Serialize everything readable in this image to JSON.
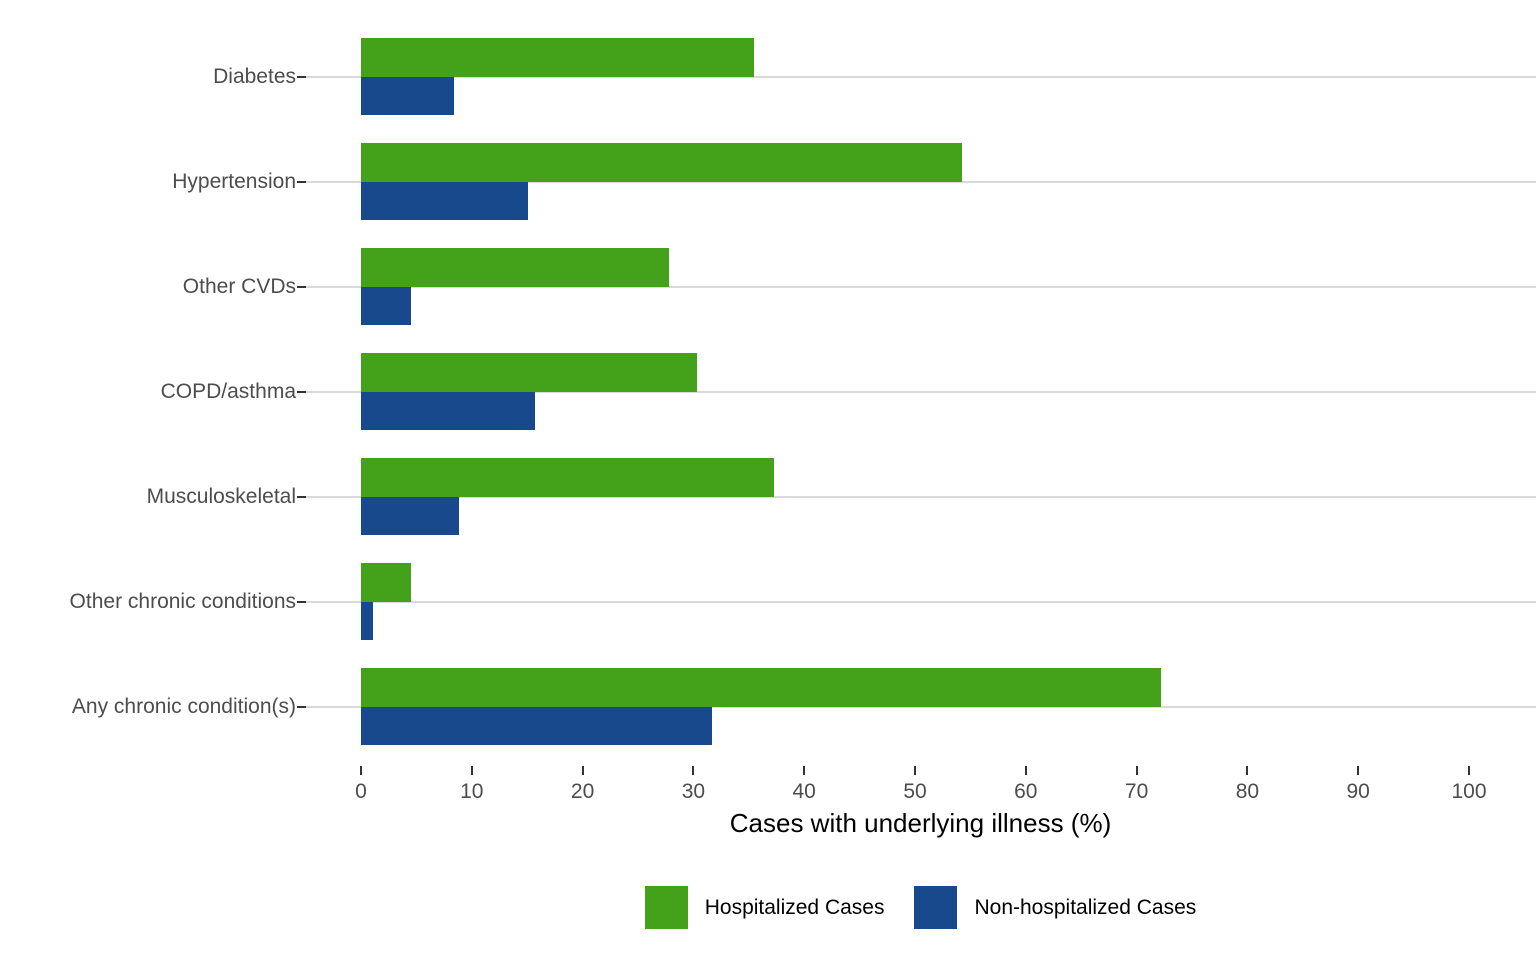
{
  "chart_data": {
    "type": "bar",
    "orientation": "horizontal",
    "title": "",
    "xlabel": "Cases with underlying illness (%)",
    "ylabel": "",
    "categories": [
      "Diabetes",
      "Hypertension",
      "Other CVDs",
      "COPD/asthma",
      "Musculoskeletal",
      "Other chronic conditions",
      "Any chronic condition(s)"
    ],
    "series": [
      {
        "name": "Hospitalized Cases",
        "color": "#44a21a",
        "values": [
          35.5,
          54.2,
          27.8,
          30.3,
          37.3,
          4.5,
          72.2
        ]
      },
      {
        "name": "Non-hospitalized Cases",
        "color": "#17498c",
        "values": [
          8.4,
          15.1,
          4.5,
          15.7,
          8.8,
          1.1,
          31.7
        ]
      }
    ],
    "x_ticks": [
      0,
      10,
      20,
      30,
      40,
      50,
      60,
      70,
      80,
      90,
      100
    ],
    "x_tick_labels": [
      "0",
      "10",
      "20",
      "30",
      "40",
      "50",
      "60",
      "70",
      "80",
      "90",
      "100"
    ],
    "xlim": [
      0,
      105
    ],
    "grid": "horizontal-major-only",
    "grid_color": "#d9d9d9",
    "tick_color": "#333333",
    "axis_text_color": "#4d4d4d",
    "legend_position": "bottom"
  },
  "axis": {
    "x_title": "Cases with underlying illness (%)"
  },
  "legend": {
    "items": [
      {
        "label": "Hospitalized Cases",
        "color": "#44a21a"
      },
      {
        "label": "Non-hospitalized Cases",
        "color": "#17498c"
      }
    ]
  }
}
